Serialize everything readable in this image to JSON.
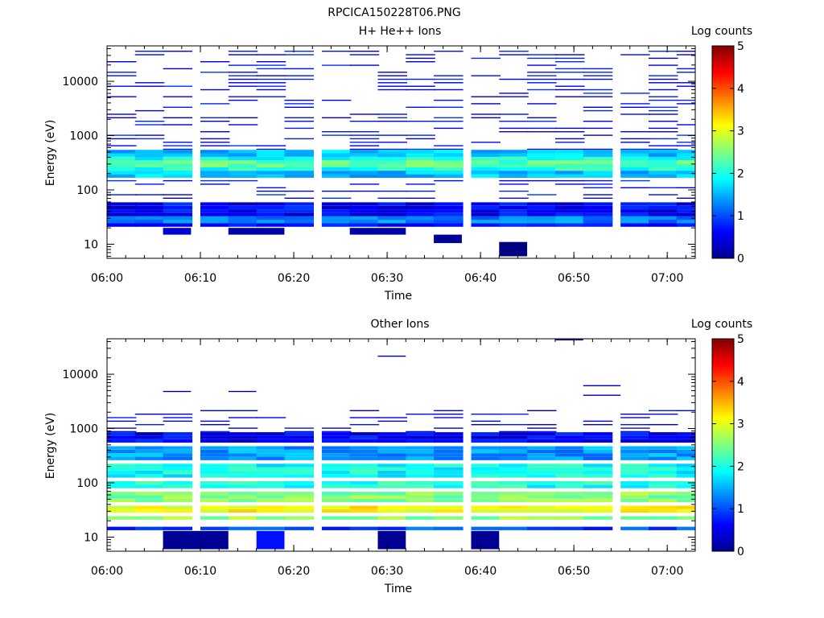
{
  "figure_title": "RPCICA150228T06.PNG",
  "chart_data": [
    {
      "type": "heatmap",
      "title": "H+ He++ Ions",
      "xlabel": "Time",
      "ylabel": "Energy (eV)",
      "x_tick_labels": [
        "06:00",
        "06:10",
        "06:20",
        "06:30",
        "06:40",
        "06:50",
        "07:00"
      ],
      "x_range": [
        "06:00",
        "07:03"
      ],
      "y_scale": "log",
      "y_range": [
        5.5,
        45000
      ],
      "y_tick_labels": [
        "10",
        "100",
        "1000",
        "10000"
      ],
      "colorbar": {
        "label": "Log counts",
        "range": [
          0,
          5
        ],
        "tick_labels": [
          "0",
          "1",
          "2",
          "3",
          "4",
          "5"
        ]
      },
      "time_bins": [
        "06:00",
        "06:03",
        "06:06",
        "06:10",
        "06:13",
        "06:16",
        "06:19",
        "06:23",
        "06:26",
        "06:29",
        "06:32",
        "06:35",
        "06:39",
        "06:42",
        "06:45",
        "06:48",
        "06:51",
        "06:55",
        "06:58",
        "07:01"
      ],
      "bands": [
        {
          "e_low": 20,
          "e_high": 60,
          "value": 0.6
        },
        {
          "e_low": 24,
          "e_high": 36,
          "value": 1.3
        },
        {
          "e_low": 28,
          "e_high": 32,
          "value": 1.9
        },
        {
          "e_low": 170,
          "e_high": 550,
          "value": 1.6
        },
        {
          "e_low": 220,
          "e_high": 420,
          "value": 2.0
        },
        {
          "e_low": 260,
          "e_high": 360,
          "value": 2.3
        }
      ],
      "high_energy_sparse": {
        "e_low": 60,
        "e_high": 42000,
        "value": 0.4
      },
      "low_patches": [
        {
          "t_start": "06:06",
          "t_end": "06:09",
          "e_low": 15,
          "e_high": 20,
          "value": 0.4
        },
        {
          "t_start": "06:13",
          "t_end": "06:19",
          "e_low": 15,
          "e_high": 20,
          "value": 0.2
        },
        {
          "t_start": "06:26",
          "t_end": "06:32",
          "e_low": 15,
          "e_high": 20,
          "value": 0.2
        },
        {
          "t_start": "06:35",
          "t_end": "06:38",
          "e_low": 10.5,
          "e_high": 15,
          "value": 0.1
        },
        {
          "t_start": "06:42",
          "t_end": "06:45",
          "e_low": 6,
          "e_high": 11,
          "value": 0.0
        }
      ]
    },
    {
      "type": "heatmap",
      "title": "Other Ions",
      "xlabel": "Time",
      "ylabel": "Energy (eV)",
      "x_tick_labels": [
        "06:00",
        "06:10",
        "06:20",
        "06:30",
        "06:40",
        "06:50",
        "07:00"
      ],
      "x_range": [
        "06:00",
        "07:03"
      ],
      "y_scale": "log",
      "y_range": [
        5.5,
        45000
      ],
      "y_tick_labels": [
        "10",
        "100",
        "1000",
        "10000"
      ],
      "colorbar": {
        "label": "Log counts",
        "range": [
          0,
          5
        ],
        "tick_labels": [
          "0",
          "1",
          "2",
          "3",
          "4",
          "5"
        ]
      },
      "time_bins": [
        "06:00",
        "06:03",
        "06:06",
        "06:10",
        "06:13",
        "06:16",
        "06:19",
        "06:23",
        "06:26",
        "06:29",
        "06:32",
        "06:35",
        "06:39",
        "06:42",
        "06:45",
        "06:48",
        "06:51",
        "06:55",
        "06:58",
        "07:01"
      ],
      "bands": [
        {
          "e_low": 13,
          "e_high": 16,
          "value": 1.0
        },
        {
          "e_low": 16,
          "e_high": 20,
          "value": 1.8
        },
        {
          "e_low": 20,
          "e_high": 26,
          "value": 2.6
        },
        {
          "e_low": 26,
          "e_high": 40,
          "value": 3.1
        },
        {
          "e_low": 40,
          "e_high": 70,
          "value": 2.5
        },
        {
          "e_low": 70,
          "e_high": 110,
          "value": 2.0
        },
        {
          "e_low": 110,
          "e_high": 250,
          "value": 1.9
        },
        {
          "e_low": 250,
          "e_high": 500,
          "value": 1.4
        },
        {
          "e_low": 500,
          "e_high": 850,
          "value": 0.6
        }
      ],
      "high_energy_sparse": {
        "e_low": 850,
        "e_high": 2500,
        "value": 0.3
      },
      "isolated_lines": [
        {
          "t_start": "06:06",
          "t_end": "06:09",
          "energy": 4700,
          "value": 0.2
        },
        {
          "t_start": "06:13",
          "t_end": "06:16",
          "energy": 4700,
          "value": 0.2
        },
        {
          "t_start": "06:29",
          "t_end": "06:32",
          "energy": 21000,
          "value": 0.2
        },
        {
          "t_start": "06:48",
          "t_end": "06:51",
          "energy": 42000,
          "value": 0.2
        },
        {
          "t_start": "06:51",
          "t_end": "06:55",
          "energy": 6000,
          "value": 0.4
        },
        {
          "t_start": "06:51",
          "t_end": "06:55",
          "energy": 4000,
          "value": 0.3
        }
      ],
      "low_patches": [
        {
          "t_start": "06:06",
          "t_end": "06:13",
          "e_low": 6,
          "e_high": 13,
          "value": 0.1
        },
        {
          "t_start": "06:16",
          "t_end": "06:19",
          "e_low": 6,
          "e_high": 13,
          "value": 0.7
        },
        {
          "t_start": "06:29",
          "t_end": "06:32",
          "e_low": 6,
          "e_high": 13,
          "value": 0.1
        },
        {
          "t_start": "06:39",
          "t_end": "06:42",
          "e_low": 6,
          "e_high": 13,
          "value": 0.1
        }
      ]
    }
  ]
}
